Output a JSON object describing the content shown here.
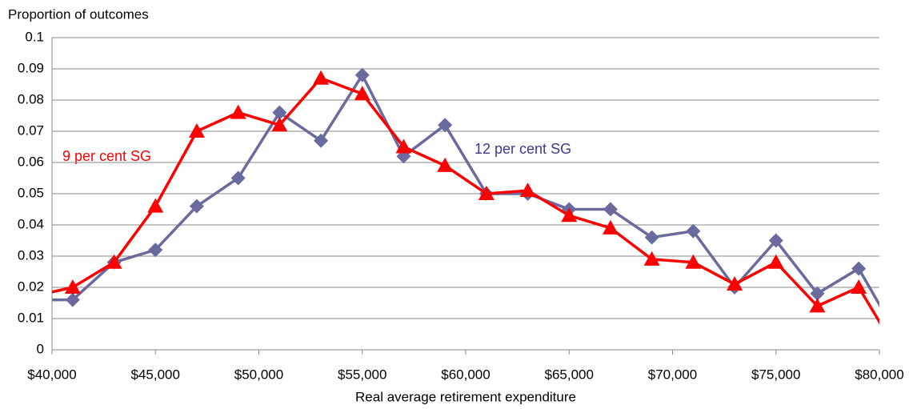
{
  "chart_data": {
    "type": "line",
    "y_label": "Proportion of outcomes",
    "x_label": "Real average retirement expenditure",
    "x": [
      39000,
      41000,
      43000,
      45000,
      47000,
      49000,
      51000,
      53000,
      55000,
      57000,
      59000,
      61000,
      63000,
      65000,
      67000,
      69000,
      71000,
      73000,
      75000,
      77000,
      79000,
      81000
    ],
    "series": [
      {
        "name": "12 per cent SG",
        "color": "#6a6a9e",
        "marker": "diamond",
        "values": [
          0.016,
          0.016,
          0.028,
          0.032,
          0.046,
          0.055,
          0.076,
          0.067,
          0.088,
          0.062,
          0.072,
          0.05,
          0.05,
          0.045,
          0.045,
          0.036,
          0.038,
          0.02,
          0.035,
          0.018,
          0.026,
          0.003
        ]
      },
      {
        "name": "9 per cent SG",
        "color": "#ff0000",
        "marker": "triangle",
        "values": [
          0.017,
          0.02,
          0.028,
          0.046,
          0.07,
          0.076,
          0.072,
          0.087,
          0.082,
          0.065,
          0.059,
          0.05,
          0.051,
          0.043,
          0.039,
          0.029,
          0.028,
          0.021,
          0.028,
          0.014,
          0.02,
          -0.002
        ]
      }
    ],
    "xlim": [
      40000,
      80000
    ],
    "xticks": [
      {
        "value": 40000,
        "label": "$40,000"
      },
      {
        "value": 45000,
        "label": "$45,000"
      },
      {
        "value": 50000,
        "label": "$50,000"
      },
      {
        "value": 55000,
        "label": "$55,000"
      },
      {
        "value": 60000,
        "label": "$60,000"
      },
      {
        "value": 65000,
        "label": "$65,000"
      },
      {
        "value": 70000,
        "label": "$70,000"
      },
      {
        "value": 75000,
        "label": "$75,000"
      },
      {
        "value": 80000,
        "label": "$80,000"
      }
    ],
    "ylim": [
      0,
      0.1
    ],
    "yticks": [
      0,
      0.01,
      0.02,
      0.03,
      0.04,
      0.05,
      0.06,
      0.07,
      0.08,
      0.09,
      0.1
    ],
    "grid": true
  }
}
